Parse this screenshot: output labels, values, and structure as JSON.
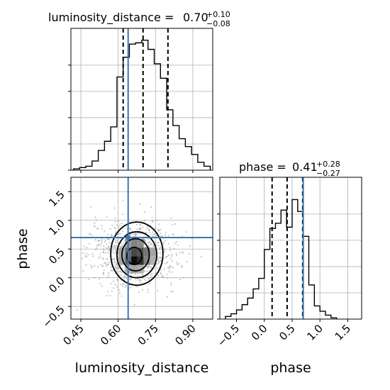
{
  "chart_data": {
    "type": "corner",
    "colors": {
      "truth": "#3a77b3",
      "hist": "#000000",
      "grid": "#b0b0b0",
      "points": "#9a9a9a"
    },
    "params": [
      {
        "name": "luminosity_distance",
        "title_prefix": "luminosity_distance = ",
        "value_text": "0.70",
        "plus": "+0.10",
        "minus": "−0.08",
        "truth": 0.64,
        "quantiles": [
          0.62,
          0.7,
          0.8
        ]
      },
      {
        "name": "phase",
        "title_prefix": "phase = ",
        "value_text": "0.41",
        "plus": "+0.28",
        "minus": "−0.27",
        "truth": 0.7,
        "quantiles": [
          0.14,
          0.41,
          0.69
        ]
      }
    ],
    "panels": [
      {
        "id": "hist-luminosity_distance",
        "type": "histogram",
        "xlim": [
          0.41,
          0.98
        ],
        "ylim": [
          0,
          1.0
        ],
        "bin_edges": [
          0.42,
          0.445,
          0.47,
          0.495,
          0.52,
          0.545,
          0.57,
          0.595,
          0.62,
          0.645,
          0.67,
          0.695,
          0.72,
          0.745,
          0.77,
          0.795,
          0.82,
          0.845,
          0.87,
          0.895,
          0.92,
          0.945,
          0.97
        ],
        "counts": [
          0.01,
          0.02,
          0.03,
          0.07,
          0.15,
          0.22,
          0.33,
          0.71,
          0.86,
          0.96,
          0.97,
          0.99,
          0.92,
          0.81,
          0.7,
          0.46,
          0.34,
          0.24,
          0.18,
          0.12,
          0.06,
          0.03
        ],
        "x_ticks": [
          0.45,
          0.6,
          0.75,
          0.9
        ],
        "x_tick_labels": [
          "",
          "",
          "",
          ""
        ]
      },
      {
        "id": "hist-phase",
        "type": "histogram",
        "xlim": [
          -0.8,
          1.75
        ],
        "ylim": [
          0,
          1.0
        ],
        "bin_edges": [
          -0.7,
          -0.6,
          -0.5,
          -0.4,
          -0.3,
          -0.2,
          -0.1,
          0.0,
          0.1,
          0.2,
          0.3,
          0.4,
          0.5,
          0.6,
          0.7,
          0.8,
          0.9,
          1.0,
          1.1,
          1.2,
          1.3
        ],
        "counts": [
          0.02,
          0.04,
          0.07,
          0.11,
          0.16,
          0.23,
          0.31,
          0.53,
          0.69,
          0.73,
          0.83,
          0.7,
          0.91,
          0.82,
          0.63,
          0.26,
          0.1,
          0.06,
          0.03,
          0.01
        ],
        "x_ticks": [
          -0.5,
          0.0,
          0.5,
          1.0,
          1.5
        ],
        "x_tick_labels": [
          "−0.5",
          "0.0",
          "0.5",
          "1.0",
          "1.5"
        ],
        "xlabel": "phase"
      },
      {
        "id": "scatter-luminosity_distance-phase",
        "type": "2d-density",
        "xlim": [
          0.41,
          0.98
        ],
        "ylim": [
          -0.72,
          1.75
        ],
        "x_ticks": [
          0.45,
          0.6,
          0.75,
          0.9
        ],
        "x_tick_labels": [
          "0.45",
          "0.60",
          "0.75",
          "0.90"
        ],
        "y_ticks": [
          -0.5,
          0.0,
          0.5,
          1.0,
          1.5
        ],
        "y_tick_labels": [
          "−0.5",
          "0.0",
          "0.5",
          "1.0",
          "1.5"
        ],
        "xlabel": "luminosity_distance",
        "ylabel": "phase",
        "center": [
          0.665,
          0.42
        ],
        "density_cells": [
          {
            "x": 0.64,
            "y": 0.45,
            "v": 0.55
          },
          {
            "x": 0.665,
            "y": 0.45,
            "v": 0.7
          },
          {
            "x": 0.69,
            "y": 0.45,
            "v": 0.65
          },
          {
            "x": 0.715,
            "y": 0.45,
            "v": 0.5
          },
          {
            "x": 0.64,
            "y": 0.3,
            "v": 0.6
          },
          {
            "x": 0.665,
            "y": 0.3,
            "v": 0.95
          },
          {
            "x": 0.69,
            "y": 0.3,
            "v": 0.8
          },
          {
            "x": 0.715,
            "y": 0.3,
            "v": 0.45
          },
          {
            "x": 0.64,
            "y": 0.6,
            "v": 0.35
          },
          {
            "x": 0.665,
            "y": 0.6,
            "v": 0.45
          },
          {
            "x": 0.69,
            "y": 0.6,
            "v": 0.4
          },
          {
            "x": 0.615,
            "y": 0.45,
            "v": 0.3
          },
          {
            "x": 0.74,
            "y": 0.45,
            "v": 0.3
          },
          {
            "x": 0.615,
            "y": 0.3,
            "v": 0.3
          },
          {
            "x": 0.74,
            "y": 0.3,
            "v": 0.25
          },
          {
            "x": 0.665,
            "y": 0.15,
            "v": 0.3
          },
          {
            "x": 0.69,
            "y": 0.15,
            "v": 0.25
          },
          {
            "x": 0.64,
            "y": 0.15,
            "v": 0.25
          }
        ],
        "contour_levels": [
          {
            "cx": 0.675,
            "cy": 0.42,
            "rx": 0.105,
            "ry": 0.55
          },
          {
            "cx": 0.675,
            "cy": 0.4,
            "rx": 0.08,
            "ry": 0.4
          },
          {
            "cx": 0.67,
            "cy": 0.4,
            "rx": 0.055,
            "ry": 0.28
          },
          {
            "cx": 0.665,
            "cy": 0.38,
            "rx": 0.03,
            "ry": 0.15
          }
        ]
      }
    ]
  }
}
